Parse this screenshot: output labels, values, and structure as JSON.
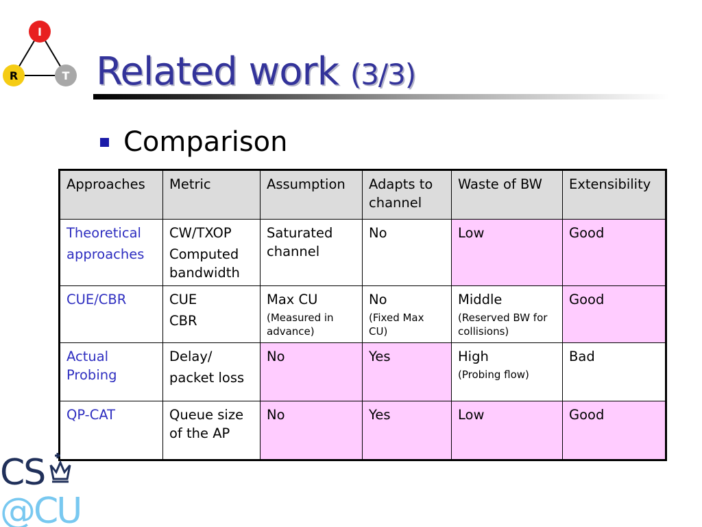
{
  "slide": {
    "title_main": "Related work",
    "title_sub": "(3/3)",
    "bullet": "Comparison"
  },
  "logo_top": {
    "letters": [
      "I",
      "R",
      "T"
    ]
  },
  "logo_bottom": {
    "line1": "CS",
    "line2": "@CU"
  },
  "colors": {
    "title": "#33339a",
    "approach_text": "#2e2ec0",
    "highlight": "#ffccff",
    "header_bg": "#dcdcdc",
    "bullet": "#1a1aa8"
  },
  "table": {
    "headers": [
      "Approaches",
      "Metric",
      "Assumption",
      "Adapts to channel",
      "Waste of BW",
      "Extensibility"
    ],
    "rows": [
      {
        "approach": [
          "Theoretical",
          "approaches"
        ],
        "metric": [
          "CW/TXOP",
          "Computed bandwidth"
        ],
        "assumption": "Saturated channel",
        "assumption_note": "",
        "adapts": "No",
        "adapts_note": "",
        "waste": "Low",
        "waste_note": "",
        "extensibility": "Good",
        "highlight": [
          false,
          false,
          false,
          false,
          true,
          true
        ]
      },
      {
        "approach": [
          "CUE/CBR"
        ],
        "metric": [
          "CUE",
          "CBR"
        ],
        "assumption": "Max CU",
        "assumption_note": "(Measured in advance)",
        "adapts": "No",
        "adapts_note": "(Fixed Max CU)",
        "waste": "Middle",
        "waste_note": "(Reserved BW for collisions)",
        "extensibility": "Good",
        "highlight": [
          false,
          false,
          false,
          false,
          false,
          true
        ]
      },
      {
        "approach": [
          "Actual Probing"
        ],
        "metric": [
          "Delay/",
          "packet loss"
        ],
        "assumption": "No",
        "assumption_note": "",
        "adapts": "Yes",
        "adapts_note": "",
        "waste": "High",
        "waste_note": "(Probing flow)",
        "extensibility": "Bad",
        "highlight": [
          false,
          false,
          true,
          true,
          false,
          false
        ]
      },
      {
        "approach": [
          "QP-CAT"
        ],
        "metric": [
          "Queue size of the AP"
        ],
        "assumption": "No",
        "assumption_note": "",
        "adapts": "Yes",
        "adapts_note": "",
        "waste": "Low",
        "waste_note": "",
        "extensibility": "Good",
        "highlight": [
          false,
          false,
          true,
          true,
          true,
          true
        ]
      }
    ]
  }
}
